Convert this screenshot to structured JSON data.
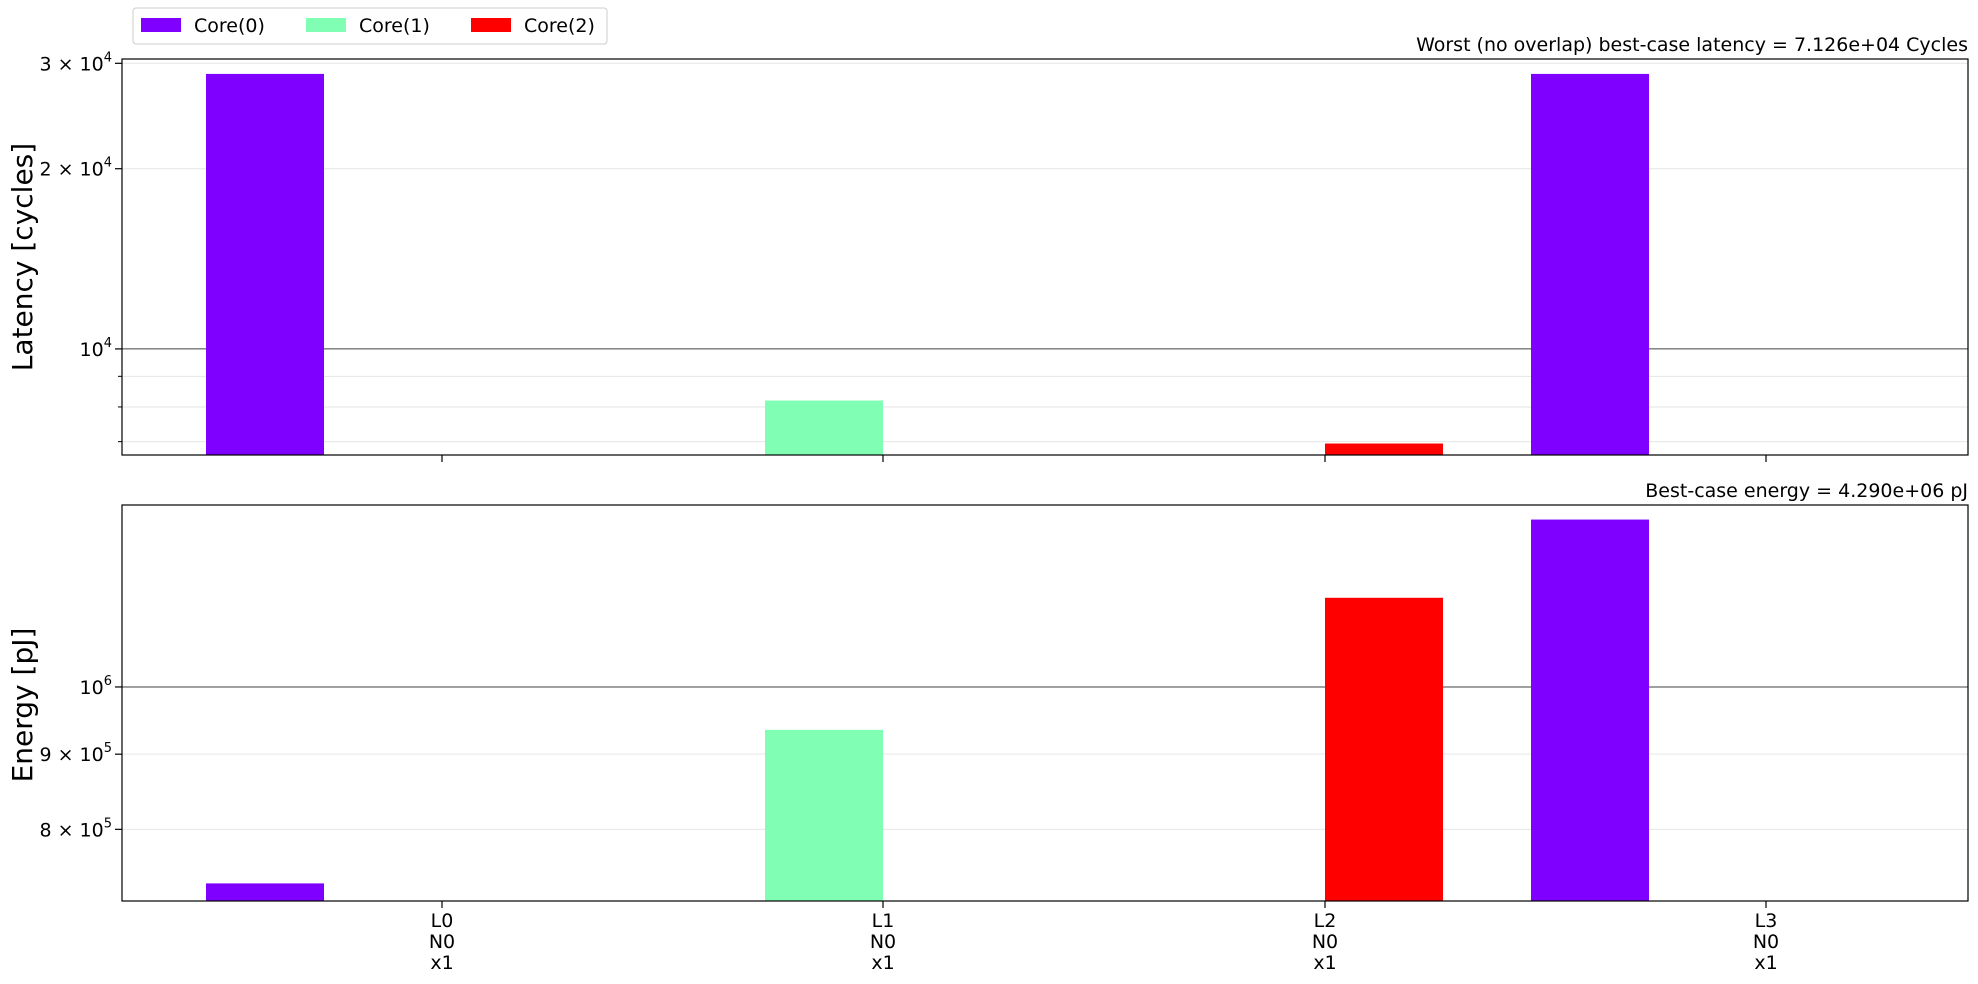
{
  "chart_data": [
    {
      "type": "bar",
      "panel": "latency",
      "annotation": "Worst (no overlap) best-case latency = 7.126e+04 Cycles",
      "ylabel": "Latency [cycles]",
      "yscale": "log",
      "ylim": [
        6650,
        30500
      ],
      "ytick_labels": [
        {
          "value": 10000,
          "base": "10",
          "exp": "4"
        },
        {
          "value": 20000,
          "base": "2 × 10",
          "exp": "4"
        },
        {
          "value": 30000,
          "base": "3 × 10",
          "exp": "4"
        }
      ],
      "categories": [
        "L0\nN0\nx1",
        "L1\nN0\nx1",
        "L2\nN0\nx1",
        "L3\nN0\nx1"
      ],
      "bars": [
        {
          "series": "Core(0)",
          "layer": "L0",
          "value": 28800
        },
        {
          "series": "Core(1)",
          "layer": "L1",
          "value": 8200
        },
        {
          "series": "Core(2)",
          "layer": "L2",
          "value": 6950
        },
        {
          "series": "Core(0)",
          "layer": "L3",
          "value": 28800
        }
      ],
      "grid": "y",
      "legend": "above-left"
    },
    {
      "type": "bar",
      "panel": "energy",
      "annotation": "Best-case energy = 4.290e+06 pJ",
      "ylabel": "Energy [pJ]",
      "yscale": "log",
      "ylim": [
        715000,
        1330000
      ],
      "ytick_labels": [
        {
          "value": 800000,
          "base": "8 × 10",
          "exp": "5"
        },
        {
          "value": 900000,
          "base": "9 × 10",
          "exp": "5"
        },
        {
          "value": 1000000,
          "base": "10",
          "exp": "6"
        }
      ],
      "categories": [
        "L0\nN0\nx1",
        "L1\nN0\nx1",
        "L2\nN0\nx1",
        "L3\nN0\nx1"
      ],
      "bars": [
        {
          "series": "Core(0)",
          "layer": "L0",
          "value": 735000
        },
        {
          "series": "Core(1)",
          "layer": "L1",
          "value": 935000
        },
        {
          "series": "Core(2)",
          "layer": "L2",
          "value": 1150000
        },
        {
          "series": "Core(0)",
          "layer": "L3",
          "value": 1300000
        }
      ],
      "grid": "y"
    }
  ],
  "legend": [
    {
      "name": "Core(0)",
      "color": "#8000ff"
    },
    {
      "name": "Core(1)",
      "color": "#80ffb4"
    },
    {
      "name": "Core(2)",
      "color": "#ff0000"
    }
  ],
  "x_tick_labels": [
    [
      "L0",
      "N0",
      "x1"
    ],
    [
      "L1",
      "N0",
      "x1"
    ],
    [
      "L2",
      "N0",
      "x1"
    ],
    [
      "L3",
      "N0",
      "x1"
    ]
  ]
}
